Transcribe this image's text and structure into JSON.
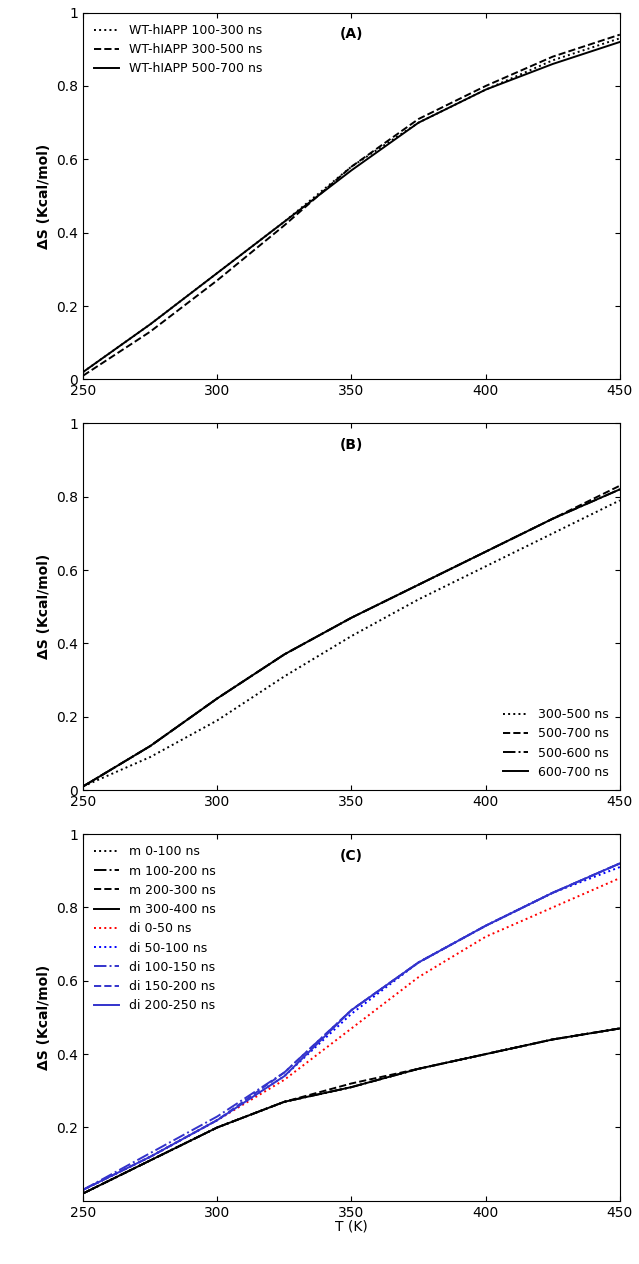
{
  "chart_data": [
    {
      "type": "line",
      "annotations": [
        "(A)"
      ],
      "y_label": "ΔS (Kcal/mol)",
      "x": [
        250,
        275,
        300,
        325,
        350,
        375,
        400,
        425,
        450
      ],
      "xlim": [
        250,
        450
      ],
      "xticks": [
        250,
        300,
        350,
        400,
        450
      ],
      "ylim": [
        0,
        1
      ],
      "yticks": [
        0,
        0.2,
        0.4,
        0.6,
        0.8,
        1
      ],
      "legend": "upper left",
      "series": [
        {
          "name": "WT-hIAPP 100-300 ns",
          "color": "#000000",
          "line_style": "dotted",
          "values": [
            0.02,
            0.15,
            0.29,
            0.43,
            0.58,
            0.7,
            0.79,
            0.87,
            0.93
          ]
        },
        {
          "name": "WT-hIAPP 300-500 ns",
          "color": "#000000",
          "line_style": "dashed",
          "values": [
            0.01,
            0.13,
            0.27,
            0.42,
            0.58,
            0.71,
            0.8,
            0.88,
            0.94
          ]
        },
        {
          "name": "WT-hIAPP 500-700 ns",
          "color": "#000000",
          "line_style": "solid",
          "values": [
            0.02,
            0.15,
            0.29,
            0.43,
            0.57,
            0.7,
            0.79,
            0.86,
            0.92
          ]
        }
      ]
    },
    {
      "type": "line",
      "annotations": [
        "(B)"
      ],
      "y_label": "ΔS (Kcal/mol)",
      "x": [
        250,
        275,
        300,
        325,
        350,
        375,
        400,
        425,
        450
      ],
      "xlim": [
        250,
        450
      ],
      "xticks": [
        250,
        300,
        350,
        400,
        450
      ],
      "ylim": [
        0,
        1
      ],
      "yticks": [
        0,
        0.2,
        0.4,
        0.6,
        0.8,
        1
      ],
      "legend": "lower right",
      "series": [
        {
          "name": "300-500 ns",
          "color": "#000000",
          "line_style": "dotted",
          "values": [
            0.01,
            0.09,
            0.19,
            0.31,
            0.42,
            0.52,
            0.61,
            0.7,
            0.79
          ]
        },
        {
          "name": "500-700 ns",
          "color": "#000000",
          "line_style": "dashed",
          "values": [
            0.01,
            0.12,
            0.25,
            0.37,
            0.47,
            0.56,
            0.65,
            0.74,
            0.83
          ]
        },
        {
          "name": "500-600 ns",
          "color": "#000000",
          "line_style": "dashdot",
          "values": [
            0.01,
            0.12,
            0.25,
            0.37,
            0.47,
            0.56,
            0.65,
            0.74,
            0.82
          ]
        },
        {
          "name": "600-700 ns",
          "color": "#000000",
          "line_style": "solid",
          "values": [
            0.01,
            0.12,
            0.25,
            0.37,
            0.47,
            0.56,
            0.65,
            0.74,
            0.82
          ]
        }
      ]
    },
    {
      "type": "line",
      "annotations": [
        "(C)"
      ],
      "x_label": "T (K)",
      "y_label": "ΔS (Kcal/mol)",
      "x": [
        250,
        275,
        300,
        325,
        350,
        375,
        400,
        425,
        450
      ],
      "xlim": [
        250,
        450
      ],
      "xticks": [
        250,
        300,
        350,
        400,
        450
      ],
      "ylim": [
        0,
        1
      ],
      "yticks": [
        0.2,
        0.4,
        0.6,
        0.8,
        1
      ],
      "legend": "upper left",
      "series": [
        {
          "name": "m 0-100 ns",
          "color": "#000000",
          "line_style": "dotted",
          "values": [
            0.02,
            0.11,
            0.2,
            0.27,
            0.31,
            0.36,
            0.4,
            0.44,
            0.47
          ]
        },
        {
          "name": "m 100-200 ns",
          "color": "#000000",
          "line_style": "dashdot",
          "values": [
            0.02,
            0.11,
            0.2,
            0.27,
            0.31,
            0.36,
            0.4,
            0.44,
            0.47
          ]
        },
        {
          "name": "m 200-300 ns",
          "color": "#000000",
          "line_style": "dashed",
          "values": [
            0.02,
            0.11,
            0.2,
            0.27,
            0.32,
            0.36,
            0.4,
            0.44,
            0.47
          ]
        },
        {
          "name": "m 300-400 ns",
          "color": "#000000",
          "line_style": "solid",
          "values": [
            0.02,
            0.11,
            0.2,
            0.27,
            0.31,
            0.36,
            0.4,
            0.44,
            0.47
          ]
        },
        {
          "name": "di 0-50 ns",
          "color": "#ff0000",
          "line_style": "dotted",
          "values": [
            0.03,
            0.12,
            0.22,
            0.33,
            0.47,
            0.61,
            0.72,
            0.8,
            0.88
          ]
        },
        {
          "name": "di 50-100 ns",
          "color": "#0000ff",
          "line_style": "dotted",
          "values": [
            0.03,
            0.12,
            0.22,
            0.34,
            0.51,
            0.65,
            0.75,
            0.84,
            0.91
          ]
        },
        {
          "name": "di 100-150 ns",
          "color": "#3333cc",
          "line_style": "dashdot",
          "values": [
            0.03,
            0.13,
            0.23,
            0.35,
            0.52,
            0.65,
            0.75,
            0.84,
            0.92
          ]
        },
        {
          "name": "di 150-200 ns",
          "color": "#3333cc",
          "line_style": "dashed",
          "values": [
            0.03,
            0.12,
            0.22,
            0.35,
            0.52,
            0.65,
            0.75,
            0.84,
            0.92
          ]
        },
        {
          "name": "di 200-250 ns",
          "color": "#3333cc",
          "line_style": "solid",
          "values": [
            0.03,
            0.12,
            0.22,
            0.34,
            0.52,
            0.65,
            0.75,
            0.84,
            0.92
          ]
        }
      ]
    }
  ]
}
